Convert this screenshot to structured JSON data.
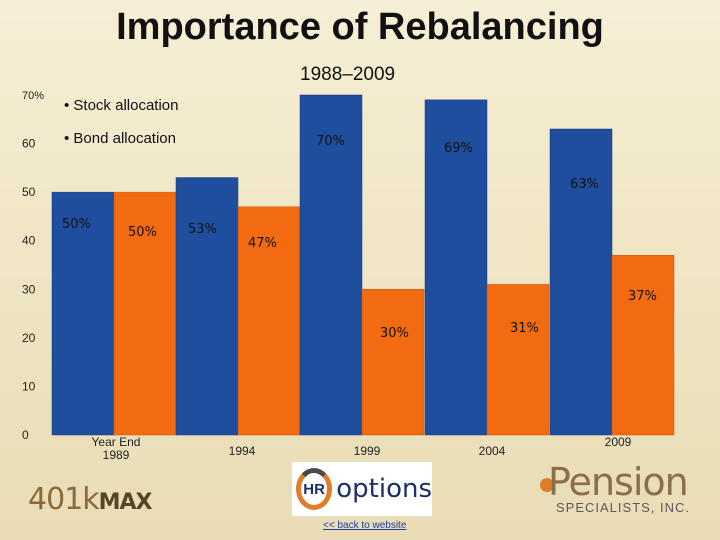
{
  "page": {
    "title": "Importance of Rebalancing",
    "subtitle": "1988–2009",
    "legend": {
      "stock": "• Stock allocation",
      "bond": "• Bond allocation"
    },
    "colors": {
      "stock": "#1f4e9e",
      "bond": "#f26b11",
      "background": "#f3ead0"
    }
  },
  "chart_data": {
    "type": "bar",
    "title": "Importance of Rebalancing",
    "subtitle": "1988–2009",
    "xlabel": "",
    "ylabel": "",
    "ylim": [
      0,
      70
    ],
    "yticks": [
      {
        "value": 0,
        "label": "0"
      },
      {
        "value": 10,
        "label": "10"
      },
      {
        "value": 20,
        "label": "20"
      },
      {
        "value": 30,
        "label": "30"
      },
      {
        "value": 40,
        "label": "40"
      },
      {
        "value": 50,
        "label": "50"
      },
      {
        "value": 60,
        "label": "60"
      },
      {
        "value": 70,
        "label": "70%"
      }
    ],
    "categories": [
      "Year End 1989",
      "1994",
      "1999",
      "2004",
      "2009"
    ],
    "category_labels": [
      "Year End\n1989",
      "1994",
      "1999",
      "2004",
      "2009"
    ],
    "series": [
      {
        "name": "Stock allocation",
        "color": "#1f4e9e",
        "values": [
          50,
          53,
          70,
          69,
          63
        ],
        "labels": [
          "50%",
          "53%",
          "70%",
          "69%",
          "63%"
        ]
      },
      {
        "name": "Bond allocation",
        "color": "#f26b11",
        "values": [
          50,
          47,
          30,
          31,
          37
        ],
        "labels": [
          "50%",
          "47%",
          "30%",
          "31%",
          "37%"
        ]
      }
    ],
    "grid": false,
    "legend_position": "top-left"
  },
  "logos": {
    "left": {
      "text": "401k",
      "suffix": "MAX"
    },
    "center": {
      "badge": "HR",
      "word": "options"
    },
    "right": {
      "word": "Pension",
      "sub": "SPECIALISTS, INC."
    }
  },
  "link": {
    "back": "<< back to website"
  }
}
